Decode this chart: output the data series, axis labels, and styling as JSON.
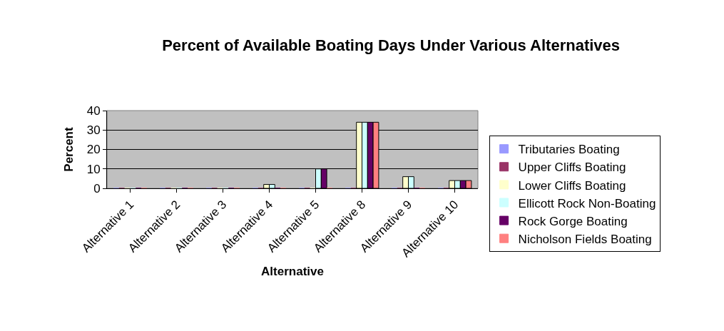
{
  "chart_data": {
    "type": "bar",
    "title": "Percent of Available Boating Days Under Various Alternatives",
    "xlabel": "Alternative",
    "ylabel": "Percent",
    "categories": [
      "Alternative 1",
      "Alternative 2",
      "Alternative 3",
      "Alternative 4",
      "Alternative 5",
      "Alternative 8",
      "Alternative 9",
      "Alternative 10"
    ],
    "series": [
      {
        "name": "Tributaries Boating",
        "color": "#9999ff",
        "values": [
          0,
          0,
          0,
          0,
          0,
          0,
          0,
          0
        ]
      },
      {
        "name": "Upper Cliffs Boating",
        "color": "#993366",
        "values": [
          0,
          0,
          0,
          0,
          0,
          0,
          0,
          0
        ]
      },
      {
        "name": "Lower Cliffs Boating",
        "color": "#ffffcc",
        "values": [
          0,
          0,
          0,
          2,
          0,
          34,
          6,
          4
        ]
      },
      {
        "name": "Ellicott Rock Non-Boating",
        "color": "#ccffff",
        "values": [
          0,
          0,
          0,
          2,
          10,
          34,
          6,
          4
        ]
      },
      {
        "name": "Rock Gorge Boating",
        "color": "#660066",
        "values": [
          0,
          0,
          0,
          0,
          10,
          34,
          0,
          4
        ]
      },
      {
        "name": "Nicholson Fields Boating",
        "color": "#ff8080",
        "values": [
          0,
          0,
          0,
          0,
          0,
          34,
          0,
          4
        ]
      }
    ],
    "ylim": [
      0,
      40
    ],
    "yticks": [
      0,
      10,
      20,
      30,
      40
    ],
    "grid": "y",
    "legend": "right"
  }
}
